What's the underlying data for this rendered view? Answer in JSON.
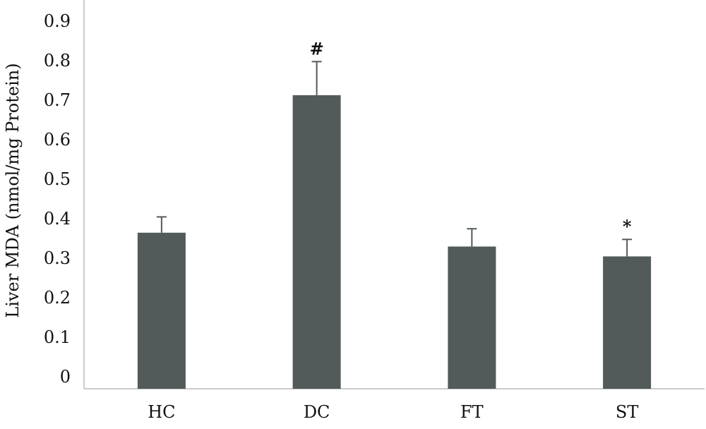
{
  "chart_data": {
    "type": "bar",
    "title": "",
    "xlabel": "",
    "ylabel": "Liver MDA (nmol/mg Protein)",
    "ylim": [
      0,
      0.9
    ],
    "yticks": [
      "0",
      "0.1",
      "0.2",
      "0.3",
      "0.4",
      "0.5",
      "0.6",
      "0.7",
      "0.8",
      "0.9"
    ],
    "categories": [
      "HC",
      "DC",
      "FT",
      "ST"
    ],
    "values": [
      0.395,
      0.743,
      0.36,
      0.335
    ],
    "errors": [
      0.04,
      0.085,
      0.045,
      0.043
    ],
    "annotations": [
      "",
      "#",
      "",
      "*"
    ],
    "grid": false,
    "bar_color": "#525a5a",
    "axis_color": "#bcbcbc"
  }
}
